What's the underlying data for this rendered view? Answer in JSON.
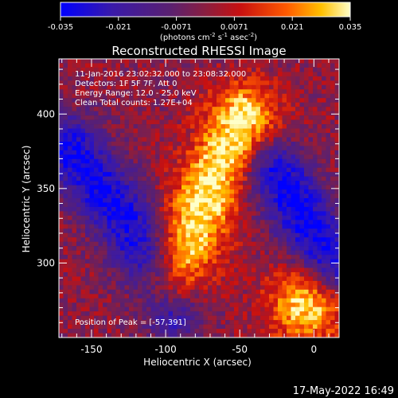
{
  "chart_data": {
    "type": "heatmap",
    "title": "Reconstructed RHESSI Image",
    "xlabel": "Heliocentric X (arcsec)",
    "ylabel": "Heliocentric Y (arcsec)",
    "xlim": [
      -172,
      17
    ],
    "ylim": [
      250,
      437
    ],
    "x_ticks": [
      -150,
      -100,
      -50,
      0
    ],
    "y_ticks": [
      300,
      350,
      400
    ],
    "colorbar": {
      "min": -0.035,
      "max": 0.035,
      "ticks": [
        "-0.035",
        "-0.021",
        "-0.0071",
        "0.0071",
        "0.021",
        "0.035"
      ],
      "unit_text": "(photons cm",
      "unit_exp1": "-2",
      "unit_mid1": " s",
      "unit_exp2": "-1",
      "unit_mid2": " asec",
      "unit_exp3": "-2",
      "unit_close": ")"
    },
    "annotations": [
      "11-Jan-2016 23:02:32.000 to 23:08:32.000",
      "Detectors: 1F 5F 7F, Att 0",
      "Energy Range: 12.0 - 25.0 keV",
      "Clean    Total counts: 1.27E+04"
    ],
    "peak_label": "Position of Peak = [-57,391]",
    "peak_position": [
      -57,
      391
    ],
    "features": [
      {
        "type": "positive_band",
        "centerline": [
          [
            -95,
            288
          ],
          [
            -72,
            346
          ],
          [
            -48,
            398
          ]
        ],
        "peak_value": 0.035
      },
      {
        "type": "positive_region",
        "center": [
          -5,
          272
        ],
        "peak_value": 0.033
      },
      {
        "type": "negative_band",
        "centerline": [
          [
            -165,
            378
          ],
          [
            -125,
            326
          ],
          [
            -95,
            270
          ]
        ],
        "min_value": -0.033
      },
      {
        "type": "negative_band",
        "centerline": [
          [
            -25,
            360
          ],
          [
            0,
            320
          ],
          [
            15,
            300
          ]
        ],
        "min_value": -0.035
      }
    ]
  },
  "footer": {
    "date": "17-May-2022 16:49"
  }
}
